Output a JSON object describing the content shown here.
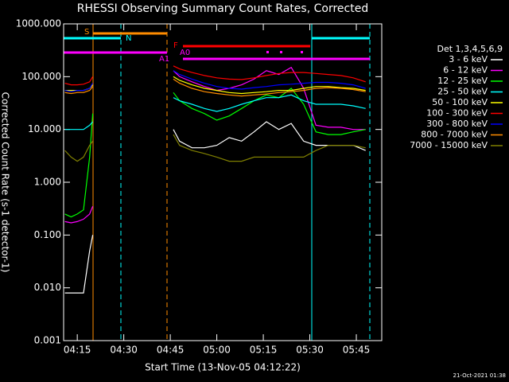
{
  "chart_data": {
    "type": "line",
    "title": "RHESSI Observing Summary Count Rates, Corrected",
    "xlabel": "Start Time (13-Nov-05 04:12:22)",
    "ylabel": "Corrected Count Rate (s-1 detector-1)",
    "legend_title": "Det 1,3,4,5,6,9",
    "footer": "21-Oct-2021 01:38",
    "annotations": [
      "S",
      "N",
      "F",
      "A1",
      "A0"
    ],
    "log_y": true,
    "xlim": [
      250.6,
      353.2
    ],
    "ylim": [
      0.001,
      1000
    ],
    "xticks": [
      {
        "value": 255,
        "label": "04:15"
      },
      {
        "value": 270,
        "label": "04:30"
      },
      {
        "value": 285,
        "label": "04:45"
      },
      {
        "value": 300,
        "label": "05:00"
      },
      {
        "value": 315,
        "label": "05:15"
      },
      {
        "value": 330,
        "label": "05:30"
      },
      {
        "value": 345,
        "label": "05:45"
      }
    ],
    "yticks": [
      {
        "value": 0.001,
        "label": "0.001"
      },
      {
        "value": 0.01,
        "label": "0.010"
      },
      {
        "value": 0.1,
        "label": "0.100"
      },
      {
        "value": 1,
        "label": "1.000"
      },
      {
        "value": 10,
        "label": "10.000"
      },
      {
        "value": 100,
        "label": "100.000"
      },
      {
        "value": 1000,
        "label": "1000.000"
      }
    ],
    "x": [
      251,
      253,
      255,
      257,
      259,
      260,
      270,
      286,
      288,
      292,
      296,
      300,
      304,
      308,
      312,
      316,
      320,
      324,
      328,
      332,
      336,
      340,
      344,
      348
    ],
    "series": [
      {
        "name": "3 - 6 keV",
        "color": "#ffffff",
        "values": [
          0.008,
          0.008,
          0.008,
          0.008,
          0.05,
          0.1,
          null,
          10,
          6,
          4.5,
          4.5,
          5,
          7,
          6,
          9,
          14,
          10,
          13,
          6,
          5,
          5,
          5,
          5,
          4
        ]
      },
      {
        "name": "6 - 12 keV",
        "color": "#ff00ff",
        "values": [
          0.18,
          0.17,
          0.18,
          0.2,
          0.25,
          0.35,
          null,
          130,
          100,
          80,
          65,
          55,
          60,
          70,
          90,
          130,
          110,
          150,
          60,
          12,
          11,
          11,
          10,
          10
        ]
      },
      {
        "name": "12 - 25 keV",
        "color": "#00ff00",
        "values": [
          0.25,
          0.22,
          0.25,
          0.3,
          3,
          20,
          null,
          50,
          35,
          25,
          20,
          15,
          18,
          25,
          35,
          45,
          40,
          60,
          30,
          9,
          8,
          8,
          9,
          10
        ]
      },
      {
        "name": "25 - 50 keV",
        "color": "#00ffff",
        "values": [
          10,
          10,
          10,
          10,
          12,
          14,
          null,
          40,
          35,
          30,
          25,
          22,
          25,
          30,
          35,
          40,
          40,
          45,
          35,
          30,
          30,
          30,
          28,
          25
        ]
      },
      {
        "name": "50 - 100 keV",
        "color": "#ffff00",
        "values": [
          55,
          55,
          55,
          55,
          60,
          70,
          null,
          100,
          85,
          70,
          60,
          55,
          50,
          48,
          50,
          52,
          55,
          55,
          60,
          65,
          65,
          62,
          60,
          55
        ]
      },
      {
        "name": "100 - 300 keV",
        "color": "#ff0000",
        "values": [
          75,
          70,
          70,
          72,
          80,
          100,
          null,
          160,
          140,
          120,
          105,
          95,
          90,
          88,
          95,
          105,
          115,
          120,
          120,
          115,
          110,
          105,
          95,
          80
        ]
      },
      {
        "name": "300 - 800 keV",
        "color": "#0000ff",
        "values": [
          55,
          52,
          55,
          55,
          60,
          75,
          null,
          130,
          110,
          90,
          75,
          65,
          60,
          58,
          62,
          65,
          70,
          72,
          75,
          78,
          78,
          75,
          70,
          60
        ]
      },
      {
        "name": "800 - 7000 keV",
        "color": "#ff8c00",
        "values": [
          50,
          48,
          50,
          50,
          55,
          65,
          null,
          90,
          75,
          60,
          52,
          48,
          45,
          43,
          45,
          47,
          50,
          52,
          55,
          60,
          62,
          60,
          57,
          52
        ]
      },
      {
        "name": "7000 - 15000 keV",
        "color": "#808000",
        "values": [
          4,
          3,
          2.5,
          3,
          5,
          6,
          null,
          8,
          5,
          4,
          3.5,
          3,
          2.5,
          2.5,
          3,
          3,
          3,
          3,
          3,
          4,
          5,
          5,
          5,
          4.5
        ]
      }
    ]
  }
}
